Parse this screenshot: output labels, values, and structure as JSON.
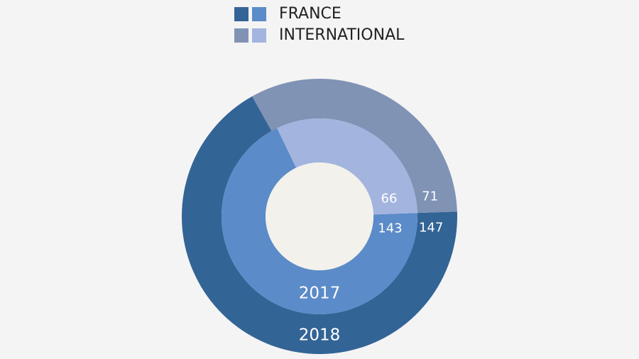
{
  "chart_data": {
    "type": "donut",
    "categories": [
      "FRANCE",
      "INTERNATIONAL"
    ],
    "series": [
      {
        "name": "2018",
        "colors": [
          "#336496",
          "#8093b5"
        ],
        "values": [
          147,
          71
        ]
      },
      {
        "name": "2017",
        "colors": [
          "#5b8bc8",
          "#a3b4de"
        ],
        "values": [
          143,
          66
        ]
      }
    ]
  }
}
